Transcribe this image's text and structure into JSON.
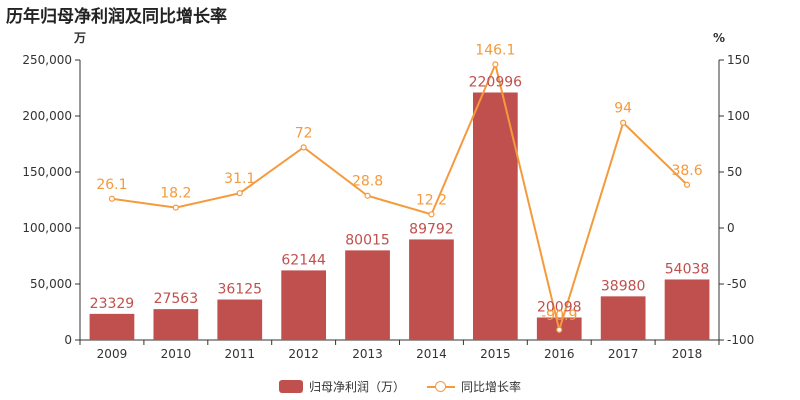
{
  "title": "历年归母净利润及同比增长率",
  "colors": {
    "bar": "#c0504d",
    "line": "#f59a3c",
    "axis": "#333333",
    "bar_label": "#c0504d",
    "line_label": "#f59a3c"
  },
  "chart_data": {
    "type": "bar",
    "title": "历年归母净利润及同比增长率",
    "categories": [
      "2009",
      "2010",
      "2011",
      "2012",
      "2013",
      "2014",
      "2015",
      "2016",
      "2017",
      "2018"
    ],
    "series": [
      {
        "name": "归母净利润（万）",
        "type": "bar",
        "axis": "left",
        "values": [
          23329,
          27563,
          36125,
          62144,
          80015,
          89792,
          220996,
          20098,
          38980,
          54038
        ]
      },
      {
        "name": "同比增长率",
        "type": "line",
        "axis": "right",
        "values": [
          26.1,
          18.2,
          31.1,
          72,
          28.8,
          12.2,
          146.1,
          -90.9,
          94,
          38.6
        ]
      }
    ],
    "y_left": {
      "unit": "万",
      "range": [
        0,
        250000
      ],
      "ticks": [
        0,
        50000,
        100000,
        150000,
        200000,
        250000
      ],
      "tick_labels": [
        "0",
        "50,000",
        "100,000",
        "150,000",
        "200,000",
        "250,000"
      ]
    },
    "y_right": {
      "unit": "%",
      "range": [
        -100,
        150
      ],
      "ticks": [
        -100,
        -50,
        0,
        50,
        100,
        150
      ],
      "tick_labels": [
        "-100",
        "-50",
        "0",
        "50",
        "100",
        "150"
      ]
    },
    "grid": false,
    "legend_position": "bottom-center"
  }
}
